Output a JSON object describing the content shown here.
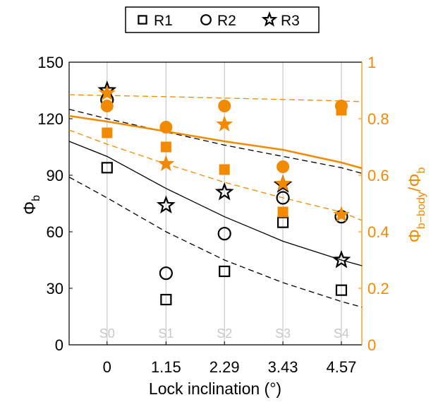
{
  "chart_data": {
    "type": "scatter",
    "xlabel": "Lock inclination (°)",
    "ylabel": [
      "Φ",
      "b"
    ],
    "y2label": [
      "Φ",
      "b−body",
      "/Φ",
      "b"
    ],
    "xlim": [
      -0.74,
      4.97
    ],
    "xticks": [
      0,
      1.15,
      2.29,
      3.43,
      4.57
    ],
    "ylim": [
      0,
      150
    ],
    "yticks": [
      0,
      30,
      60,
      90,
      120,
      150
    ],
    "y2lim": [
      0,
      1
    ],
    "y2ticks": [
      0,
      0.2,
      0.4,
      0.6,
      0.8,
      1
    ],
    "y2color": "#f28a00",
    "grid": "x",
    "annotations": [
      "S0",
      "S1",
      "S2",
      "S3",
      "S4"
    ],
    "x": [
      0,
      1.15,
      2.29,
      3.43,
      4.57
    ],
    "series": [
      {
        "name": "R1",
        "marker": "square",
        "color": "#000000",
        "filled": false,
        "values": [
          94,
          24,
          39,
          65,
          29
        ]
      },
      {
        "name": "R2",
        "marker": "circle",
        "color": "#000000",
        "filled": false,
        "values": [
          130,
          38,
          59,
          78,
          68
        ]
      },
      {
        "name": "R3",
        "marker": "star",
        "color": "#000000",
        "filled": false,
        "values": [
          135,
          74,
          81,
          85,
          45
        ]
      },
      {
        "marker": "square",
        "color": "#f28a00",
        "filled": true,
        "axis": "y2",
        "values": [
          0.75,
          0.7,
          0.62,
          0.47,
          0.83
        ]
      },
      {
        "marker": "circle",
        "color": "#f28a00",
        "filled": true,
        "axis": "y2",
        "values": [
          0.845,
          0.77,
          0.845,
          0.63,
          0.845
        ]
      },
      {
        "marker": "star",
        "color": "#f28a00",
        "filled": true,
        "axis": "y2",
        "values": [
          0.89,
          0.64,
          0.78,
          0.57,
          0.46
        ]
      }
    ],
    "fits_x": [
      -0.74,
      0,
      1.15,
      2.29,
      3.43,
      4.57,
      4.97
    ],
    "fits": [
      {
        "color": "#000000",
        "dashed": false,
        "values": [
          108,
          100,
          83,
          68,
          55,
          45,
          42
        ]
      },
      {
        "color": "#000000",
        "dashed": true,
        "values": [
          89,
          78,
          60,
          45,
          33,
          23,
          20
        ]
      },
      {
        "color": "#000000",
        "dashed": true,
        "values": [
          125,
          120,
          113,
          106,
          100,
          94,
          91
        ]
      },
      {
        "color": "#f28a00",
        "dashed": false,
        "axis": "y2",
        "values": [
          0.81,
          0.79,
          0.755,
          0.72,
          0.69,
          0.645,
          0.625
        ]
      },
      {
        "color": "#f28a00",
        "dashed": true,
        "axis": "y2",
        "values": [
          0.885,
          0.882,
          0.878,
          0.873,
          0.868,
          0.863,
          0.86
        ]
      },
      {
        "color": "#f28a00",
        "dashed": true,
        "axis": "y2",
        "values": [
          0.76,
          0.71,
          0.64,
          0.575,
          0.52,
          0.47,
          0.44
        ]
      }
    ]
  }
}
